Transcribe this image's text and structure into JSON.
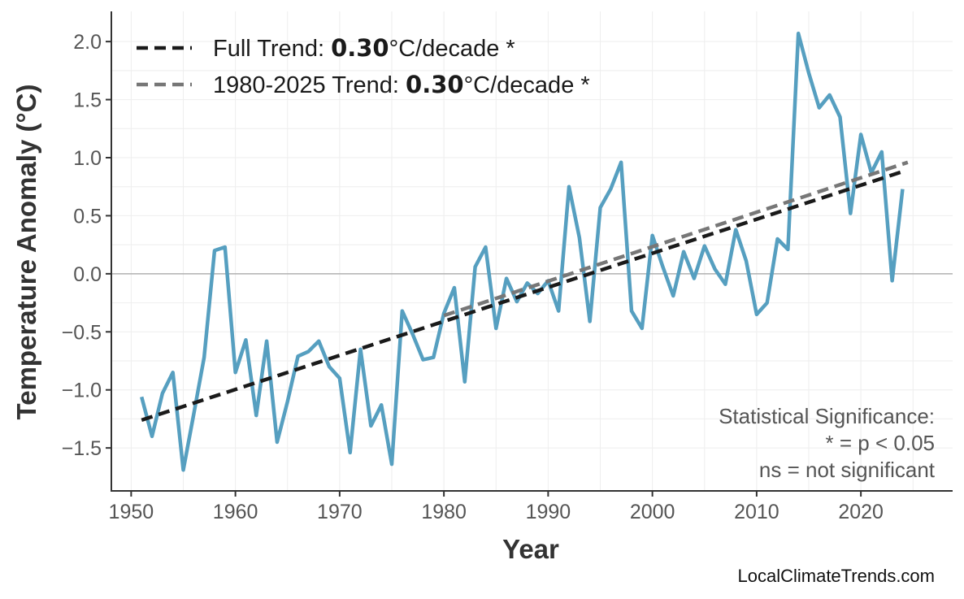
{
  "chart_data": {
    "type": "line",
    "xlabel": "Year",
    "ylabel": "Temperature Anomaly (°C)",
    "xlim": [
      1948.1,
      2028.8
    ],
    "ylim": [
      -1.87,
      2.26
    ],
    "xticks": [
      1950,
      1960,
      1970,
      1980,
      1990,
      2000,
      2010,
      2020
    ],
    "yticks": [
      -1.5,
      -1.0,
      -0.5,
      0.0,
      0.5,
      1.0,
      1.5,
      2.0
    ],
    "ytick_labels": [
      "−1.5",
      "−1.0",
      "−0.5",
      "0.0",
      "0.5",
      "1.0",
      "1.5",
      "2.0"
    ],
    "grid": true,
    "zero_line": true,
    "series": [
      {
        "color": "#569fc0",
        "x": [
          1951,
          1952,
          1953,
          1954,
          1955,
          1956,
          1957,
          1958,
          1959,
          1960,
          1961,
          1962,
          1963,
          1964,
          1965,
          1966,
          1967,
          1968,
          1969,
          1970,
          1971,
          1972,
          1973,
          1974,
          1975,
          1976,
          1977,
          1978,
          1979,
          1980,
          1981,
          1982,
          1983,
          1984,
          1985,
          1986,
          1987,
          1988,
          1989,
          1990,
          1991,
          1992,
          1993,
          1994,
          1995,
          1996,
          1997,
          1998,
          1999,
          2000,
          2001,
          2002,
          2003,
          2004,
          2005,
          2006,
          2007,
          2008,
          2009,
          2010,
          2011,
          2012,
          2013,
          2014,
          2015,
          2016,
          2017,
          2018,
          2019,
          2020,
          2021,
          2022,
          2023,
          2024
        ],
        "y": [
          -1.06,
          -1.4,
          -1.03,
          -0.85,
          -1.69,
          -1.21,
          -0.72,
          0.2,
          0.23,
          -0.85,
          -0.57,
          -1.22,
          -0.58,
          -1.45,
          -1.1,
          -0.71,
          -0.67,
          -0.58,
          -0.8,
          -0.9,
          -1.54,
          -0.65,
          -1.31,
          -1.13,
          -1.64,
          -0.32,
          -0.52,
          -0.74,
          -0.72,
          -0.34,
          -0.12,
          -0.93,
          0.06,
          0.23,
          -0.47,
          -0.04,
          -0.24,
          -0.08,
          -0.17,
          -0.06,
          -0.32,
          0.75,
          0.31,
          -0.41,
          0.57,
          0.73,
          0.96,
          -0.32,
          -0.47,
          0.33,
          0.06,
          -0.19,
          0.19,
          -0.04,
          0.24,
          0.04,
          -0.09,
          0.38,
          0.11,
          -0.35,
          -0.25,
          0.3,
          0.21,
          2.07,
          1.73,
          1.43,
          1.54,
          1.35,
          0.52,
          1.2,
          0.87,
          1.05,
          -0.06,
          0.73
        ]
      }
    ],
    "trends": [
      {
        "label_prefix": "Full Trend: ",
        "value": "0.30",
        "label_suffix": "°C/decade *",
        "color": "#1a1a1a",
        "x": [
          1951,
          2024
        ],
        "y": [
          -1.26,
          0.88
        ]
      },
      {
        "label_prefix": "1980-2025 Trend: ",
        "value": "0.30",
        "label_suffix": "°C/decade *",
        "color": "#777777",
        "x": [
          1980,
          2024.5
        ],
        "y": [
          -0.36,
          0.96
        ]
      }
    ],
    "legend_position": "top-left",
    "annotation": [
      "Statistical Significance:",
      "* = p < 0.05",
      "ns = not significant"
    ]
  },
  "watermark": "LocalClimateTrends.com"
}
